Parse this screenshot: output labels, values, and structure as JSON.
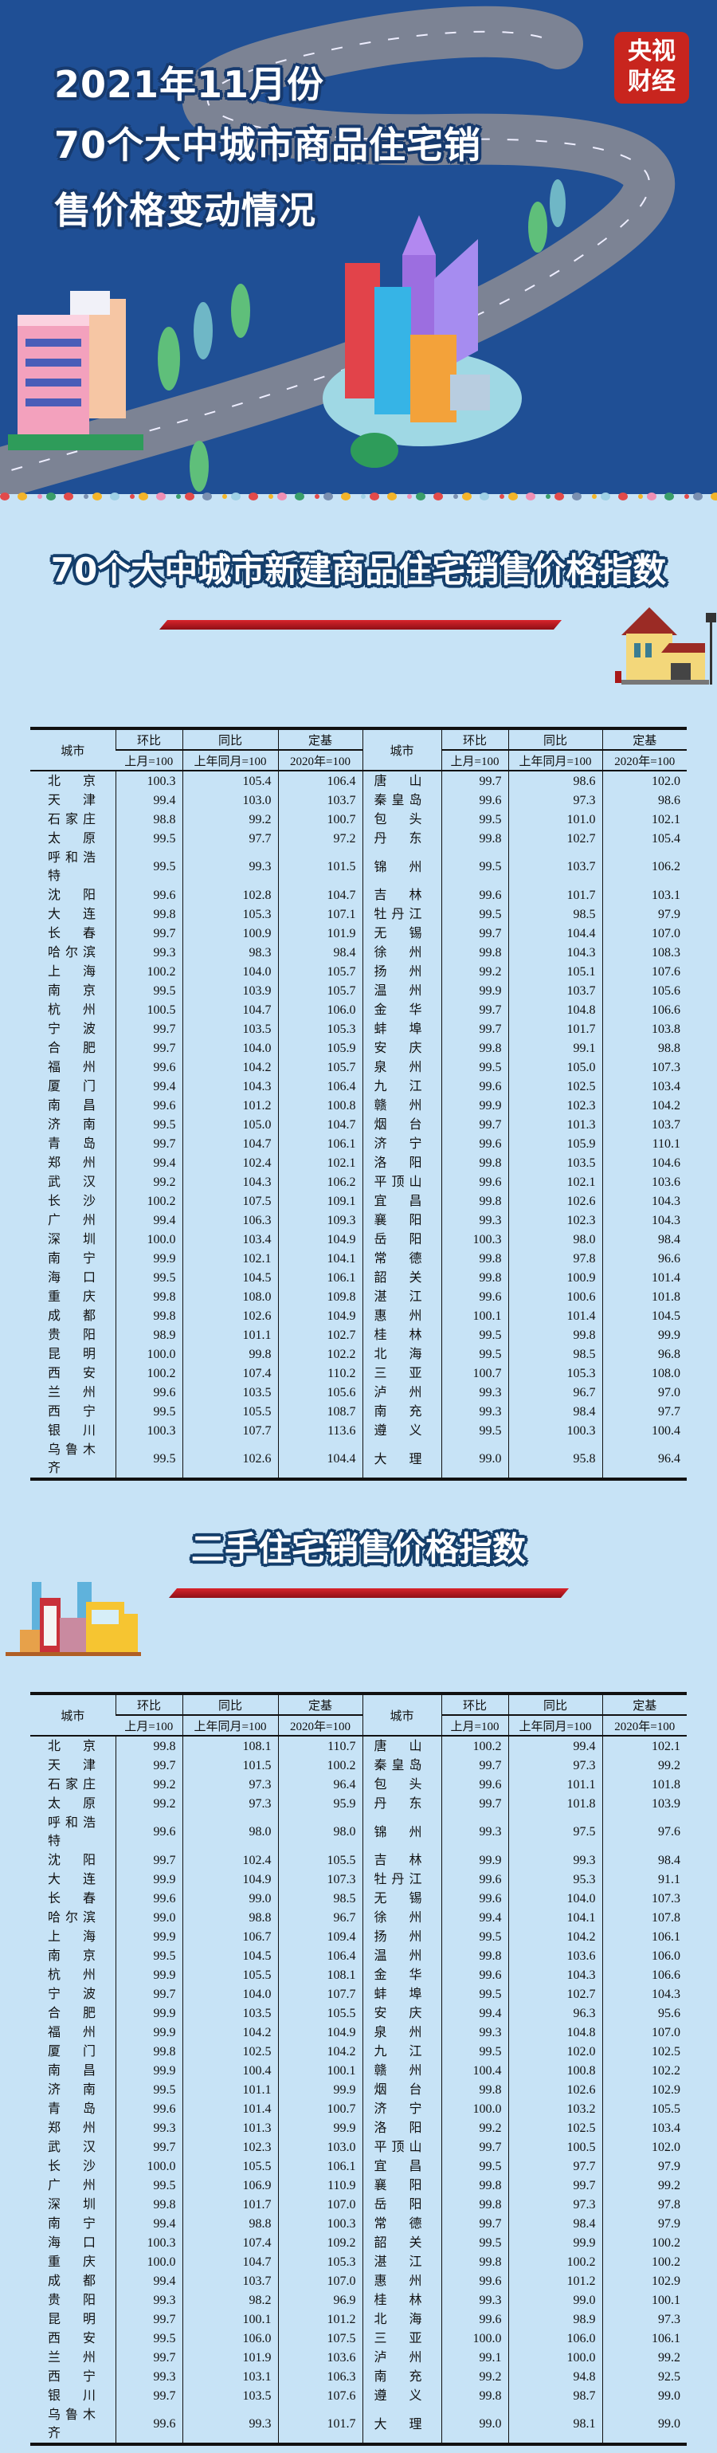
{
  "header": {
    "title_lines": [
      "2021年11月份",
      "70个大中城市商品住宅销",
      "售价格变动情况"
    ],
    "logo_text": [
      "央视",
      "财经"
    ],
    "background_color": "#1f4f95"
  },
  "section_new": {
    "title": "70个大中城市新建商品住宅销售价格指数",
    "icon": "house-icon"
  },
  "section_used": {
    "title": "二手住宅销售价格指数",
    "icon": "buildings-icon"
  },
  "table_headers": {
    "city": "城市",
    "mom": "环比",
    "yoy": "同比",
    "base": "定基",
    "mom_sub": "上月=100",
    "yoy_sub": "上年同月=100",
    "base_sub": "2020年=100"
  },
  "table_new": [
    [
      "北京",
      "100.3",
      "105.4",
      "106.4",
      "唐山",
      "99.7",
      "98.6",
      "102.0"
    ],
    [
      "天津",
      "99.4",
      "103.0",
      "103.7",
      "秦皇岛",
      "99.6",
      "97.3",
      "98.6"
    ],
    [
      "石家庄",
      "98.8",
      "99.2",
      "100.7",
      "包头",
      "99.5",
      "101.0",
      "102.1"
    ],
    [
      "太原",
      "99.5",
      "97.7",
      "97.2",
      "丹东",
      "99.8",
      "102.7",
      "105.4"
    ],
    [
      "呼和浩特",
      "99.5",
      "99.3",
      "101.5",
      "锦州",
      "99.5",
      "103.7",
      "106.2"
    ],
    [
      "沈阳",
      "99.6",
      "102.8",
      "104.7",
      "吉林",
      "99.6",
      "101.7",
      "103.1"
    ],
    [
      "大连",
      "99.8",
      "105.3",
      "107.1",
      "牡丹江",
      "99.5",
      "98.5",
      "97.9"
    ],
    [
      "长春",
      "99.7",
      "100.9",
      "101.9",
      "无锡",
      "99.7",
      "104.4",
      "107.0"
    ],
    [
      "哈尔滨",
      "99.3",
      "98.3",
      "98.4",
      "徐州",
      "99.8",
      "104.3",
      "108.3"
    ],
    [
      "上海",
      "100.2",
      "104.0",
      "105.7",
      "扬州",
      "99.2",
      "105.1",
      "107.6"
    ],
    [
      "南京",
      "99.5",
      "103.9",
      "105.7",
      "温州",
      "99.9",
      "103.7",
      "105.6"
    ],
    [
      "杭州",
      "100.5",
      "104.7",
      "106.0",
      "金华",
      "99.7",
      "104.8",
      "106.6"
    ],
    [
      "宁波",
      "99.7",
      "103.5",
      "105.3",
      "蚌埠",
      "99.7",
      "101.7",
      "103.8"
    ],
    [
      "合肥",
      "99.7",
      "104.0",
      "105.9",
      "安庆",
      "99.8",
      "99.1",
      "98.8"
    ],
    [
      "福州",
      "99.6",
      "104.2",
      "105.7",
      "泉州",
      "99.5",
      "105.0",
      "107.3"
    ],
    [
      "厦门",
      "99.4",
      "104.3",
      "106.4",
      "九江",
      "99.6",
      "102.5",
      "103.4"
    ],
    [
      "南昌",
      "99.6",
      "101.2",
      "100.8",
      "赣州",
      "99.9",
      "102.3",
      "104.2"
    ],
    [
      "济南",
      "99.5",
      "105.0",
      "104.7",
      "烟台",
      "99.7",
      "101.3",
      "103.7"
    ],
    [
      "青岛",
      "99.7",
      "104.7",
      "106.1",
      "济宁",
      "99.6",
      "105.9",
      "110.1"
    ],
    [
      "郑州",
      "99.4",
      "102.4",
      "102.1",
      "洛阳",
      "99.8",
      "103.5",
      "104.6"
    ],
    [
      "武汉",
      "99.2",
      "104.3",
      "106.2",
      "平顶山",
      "99.6",
      "102.1",
      "103.6"
    ],
    [
      "长沙",
      "100.2",
      "107.5",
      "109.1",
      "宜昌",
      "99.8",
      "102.6",
      "104.3"
    ],
    [
      "广州",
      "99.4",
      "106.3",
      "109.3",
      "襄阳",
      "99.3",
      "102.3",
      "104.3"
    ],
    [
      "深圳",
      "100.0",
      "103.4",
      "104.9",
      "岳阳",
      "100.3",
      "98.0",
      "98.4"
    ],
    [
      "南宁",
      "99.9",
      "102.1",
      "104.1",
      "常德",
      "99.8",
      "97.8",
      "96.6"
    ],
    [
      "海口",
      "99.5",
      "104.5",
      "106.1",
      "韶关",
      "99.8",
      "100.9",
      "101.4"
    ],
    [
      "重庆",
      "99.8",
      "108.0",
      "109.8",
      "湛江",
      "99.6",
      "100.6",
      "101.8"
    ],
    [
      "成都",
      "99.8",
      "102.6",
      "104.9",
      "惠州",
      "100.1",
      "101.4",
      "104.5"
    ],
    [
      "贵阳",
      "98.9",
      "101.1",
      "102.7",
      "桂林",
      "99.5",
      "99.8",
      "99.9"
    ],
    [
      "昆明",
      "100.0",
      "99.8",
      "102.2",
      "北海",
      "99.5",
      "98.5",
      "96.8"
    ],
    [
      "西安",
      "100.2",
      "107.4",
      "110.2",
      "三亚",
      "100.7",
      "105.3",
      "108.0"
    ],
    [
      "兰州",
      "99.6",
      "103.5",
      "105.6",
      "泸州",
      "99.3",
      "96.7",
      "97.0"
    ],
    [
      "西宁",
      "99.5",
      "105.5",
      "108.7",
      "南充",
      "99.3",
      "98.4",
      "97.7"
    ],
    [
      "银川",
      "100.3",
      "107.7",
      "113.6",
      "遵义",
      "99.5",
      "100.3",
      "100.4"
    ],
    [
      "乌鲁木齐",
      "99.5",
      "102.6",
      "104.4",
      "大理",
      "99.0",
      "95.8",
      "96.4"
    ]
  ],
  "table_used": [
    [
      "北京",
      "99.8",
      "108.1",
      "110.7",
      "唐山",
      "100.2",
      "99.4",
      "102.1"
    ],
    [
      "天津",
      "99.7",
      "101.5",
      "100.2",
      "秦皇岛",
      "99.7",
      "97.3",
      "99.2"
    ],
    [
      "石家庄",
      "99.2",
      "97.3",
      "96.4",
      "包头",
      "99.6",
      "101.1",
      "101.8"
    ],
    [
      "太原",
      "99.2",
      "97.3",
      "95.9",
      "丹东",
      "99.7",
      "101.8",
      "103.9"
    ],
    [
      "呼和浩特",
      "99.6",
      "98.0",
      "98.0",
      "锦州",
      "99.3",
      "97.5",
      "97.6"
    ],
    [
      "沈阳",
      "99.7",
      "102.4",
      "105.5",
      "吉林",
      "99.9",
      "99.3",
      "98.4"
    ],
    [
      "大连",
      "99.9",
      "104.9",
      "107.3",
      "牡丹江",
      "99.6",
      "95.3",
      "91.1"
    ],
    [
      "长春",
      "99.6",
      "99.0",
      "98.5",
      "无锡",
      "99.6",
      "104.0",
      "107.3"
    ],
    [
      "哈尔滨",
      "99.0",
      "98.8",
      "96.7",
      "徐州",
      "99.4",
      "104.1",
      "107.8"
    ],
    [
      "上海",
      "99.9",
      "106.7",
      "109.4",
      "扬州",
      "99.5",
      "104.2",
      "106.1"
    ],
    [
      "南京",
      "99.5",
      "104.5",
      "106.4",
      "温州",
      "99.8",
      "103.6",
      "106.0"
    ],
    [
      "杭州",
      "99.9",
      "105.5",
      "108.1",
      "金华",
      "99.6",
      "104.3",
      "106.6"
    ],
    [
      "宁波",
      "99.7",
      "104.0",
      "107.7",
      "蚌埠",
      "99.5",
      "102.7",
      "104.3"
    ],
    [
      "合肥",
      "99.9",
      "103.5",
      "105.5",
      "安庆",
      "99.4",
      "96.3",
      "95.6"
    ],
    [
      "福州",
      "99.9",
      "104.2",
      "104.9",
      "泉州",
      "99.3",
      "104.8",
      "107.0"
    ],
    [
      "厦门",
      "99.8",
      "102.5",
      "104.2",
      "九江",
      "99.5",
      "102.0",
      "102.5"
    ],
    [
      "南昌",
      "99.9",
      "100.4",
      "100.1",
      "赣州",
      "100.4",
      "100.8",
      "102.2"
    ],
    [
      "济南",
      "99.5",
      "101.1",
      "99.9",
      "烟台",
      "99.8",
      "102.6",
      "102.9"
    ],
    [
      "青岛",
      "99.6",
      "101.4",
      "100.7",
      "济宁",
      "100.0",
      "103.2",
      "105.5"
    ],
    [
      "郑州",
      "99.3",
      "101.3",
      "99.9",
      "洛阳",
      "99.2",
      "102.5",
      "103.4"
    ],
    [
      "武汉",
      "99.7",
      "102.3",
      "103.0",
      "平顶山",
      "99.7",
      "100.5",
      "102.0"
    ],
    [
      "长沙",
      "100.0",
      "105.5",
      "106.1",
      "宜昌",
      "99.5",
      "97.7",
      "97.9"
    ],
    [
      "广州",
      "99.5",
      "106.9",
      "110.9",
      "襄阳",
      "99.8",
      "99.7",
      "99.2"
    ],
    [
      "深圳",
      "99.8",
      "101.7",
      "107.0",
      "岳阳",
      "99.8",
      "97.3",
      "97.8"
    ],
    [
      "南宁",
      "99.4",
      "98.8",
      "100.3",
      "常德",
      "99.7",
      "98.4",
      "97.9"
    ],
    [
      "海口",
      "100.3",
      "107.4",
      "109.2",
      "韶关",
      "99.5",
      "99.9",
      "100.2"
    ],
    [
      "重庆",
      "100.0",
      "104.7",
      "105.3",
      "湛江",
      "99.8",
      "100.2",
      "100.2"
    ],
    [
      "成都",
      "99.4",
      "103.7",
      "107.0",
      "惠州",
      "99.6",
      "101.2",
      "102.9"
    ],
    [
      "贵阳",
      "99.3",
      "98.2",
      "96.9",
      "桂林",
      "99.3",
      "99.0",
      "100.1"
    ],
    [
      "昆明",
      "99.7",
      "100.1",
      "101.2",
      "北海",
      "99.6",
      "98.9",
      "97.3"
    ],
    [
      "西安",
      "99.5",
      "106.0",
      "107.5",
      "三亚",
      "100.0",
      "106.0",
      "106.1"
    ],
    [
      "兰州",
      "99.7",
      "101.9",
      "103.6",
      "泸州",
      "99.1",
      "100.0",
      "99.2"
    ],
    [
      "西宁",
      "99.3",
      "103.1",
      "106.3",
      "南充",
      "99.2",
      "94.8",
      "92.5"
    ],
    [
      "银川",
      "99.7",
      "103.5",
      "107.6",
      "遵义",
      "99.8",
      "98.7",
      "99.0"
    ],
    [
      "乌鲁木齐",
      "99.6",
      "99.3",
      "101.7",
      "大理",
      "99.0",
      "98.1",
      "99.0"
    ]
  ]
}
